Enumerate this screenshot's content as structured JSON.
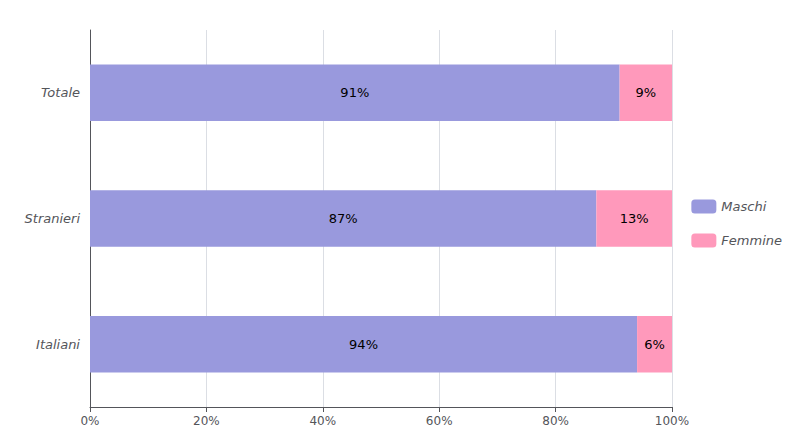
{
  "chart_data": {
    "type": "bar",
    "orientation": "horizontal",
    "stacked": true,
    "categories": [
      "Italiani",
      "Stranieri",
      "Totale"
    ],
    "series": [
      {
        "name": "Maschi",
        "color": "#9999dd",
        "values": [
          94,
          87,
          91
        ],
        "value_labels": [
          "94%",
          "87%",
          "91%"
        ]
      },
      {
        "name": "Femmine",
        "color": "#ff99bb",
        "values": [
          6,
          13,
          9
        ],
        "value_labels": [
          "6%",
          "13%",
          "9%"
        ]
      }
    ],
    "xlim": [
      0,
      100
    ],
    "xticks": [
      {
        "value": 0,
        "label": "0%"
      },
      {
        "value": 20,
        "label": "20%"
      },
      {
        "value": 40,
        "label": "40%"
      },
      {
        "value": 60,
        "label": "60%"
      },
      {
        "value": 80,
        "label": "80%"
      },
      {
        "value": 100,
        "label": "100%"
      }
    ],
    "grid": true,
    "legend": "right",
    "data_labels": true
  }
}
